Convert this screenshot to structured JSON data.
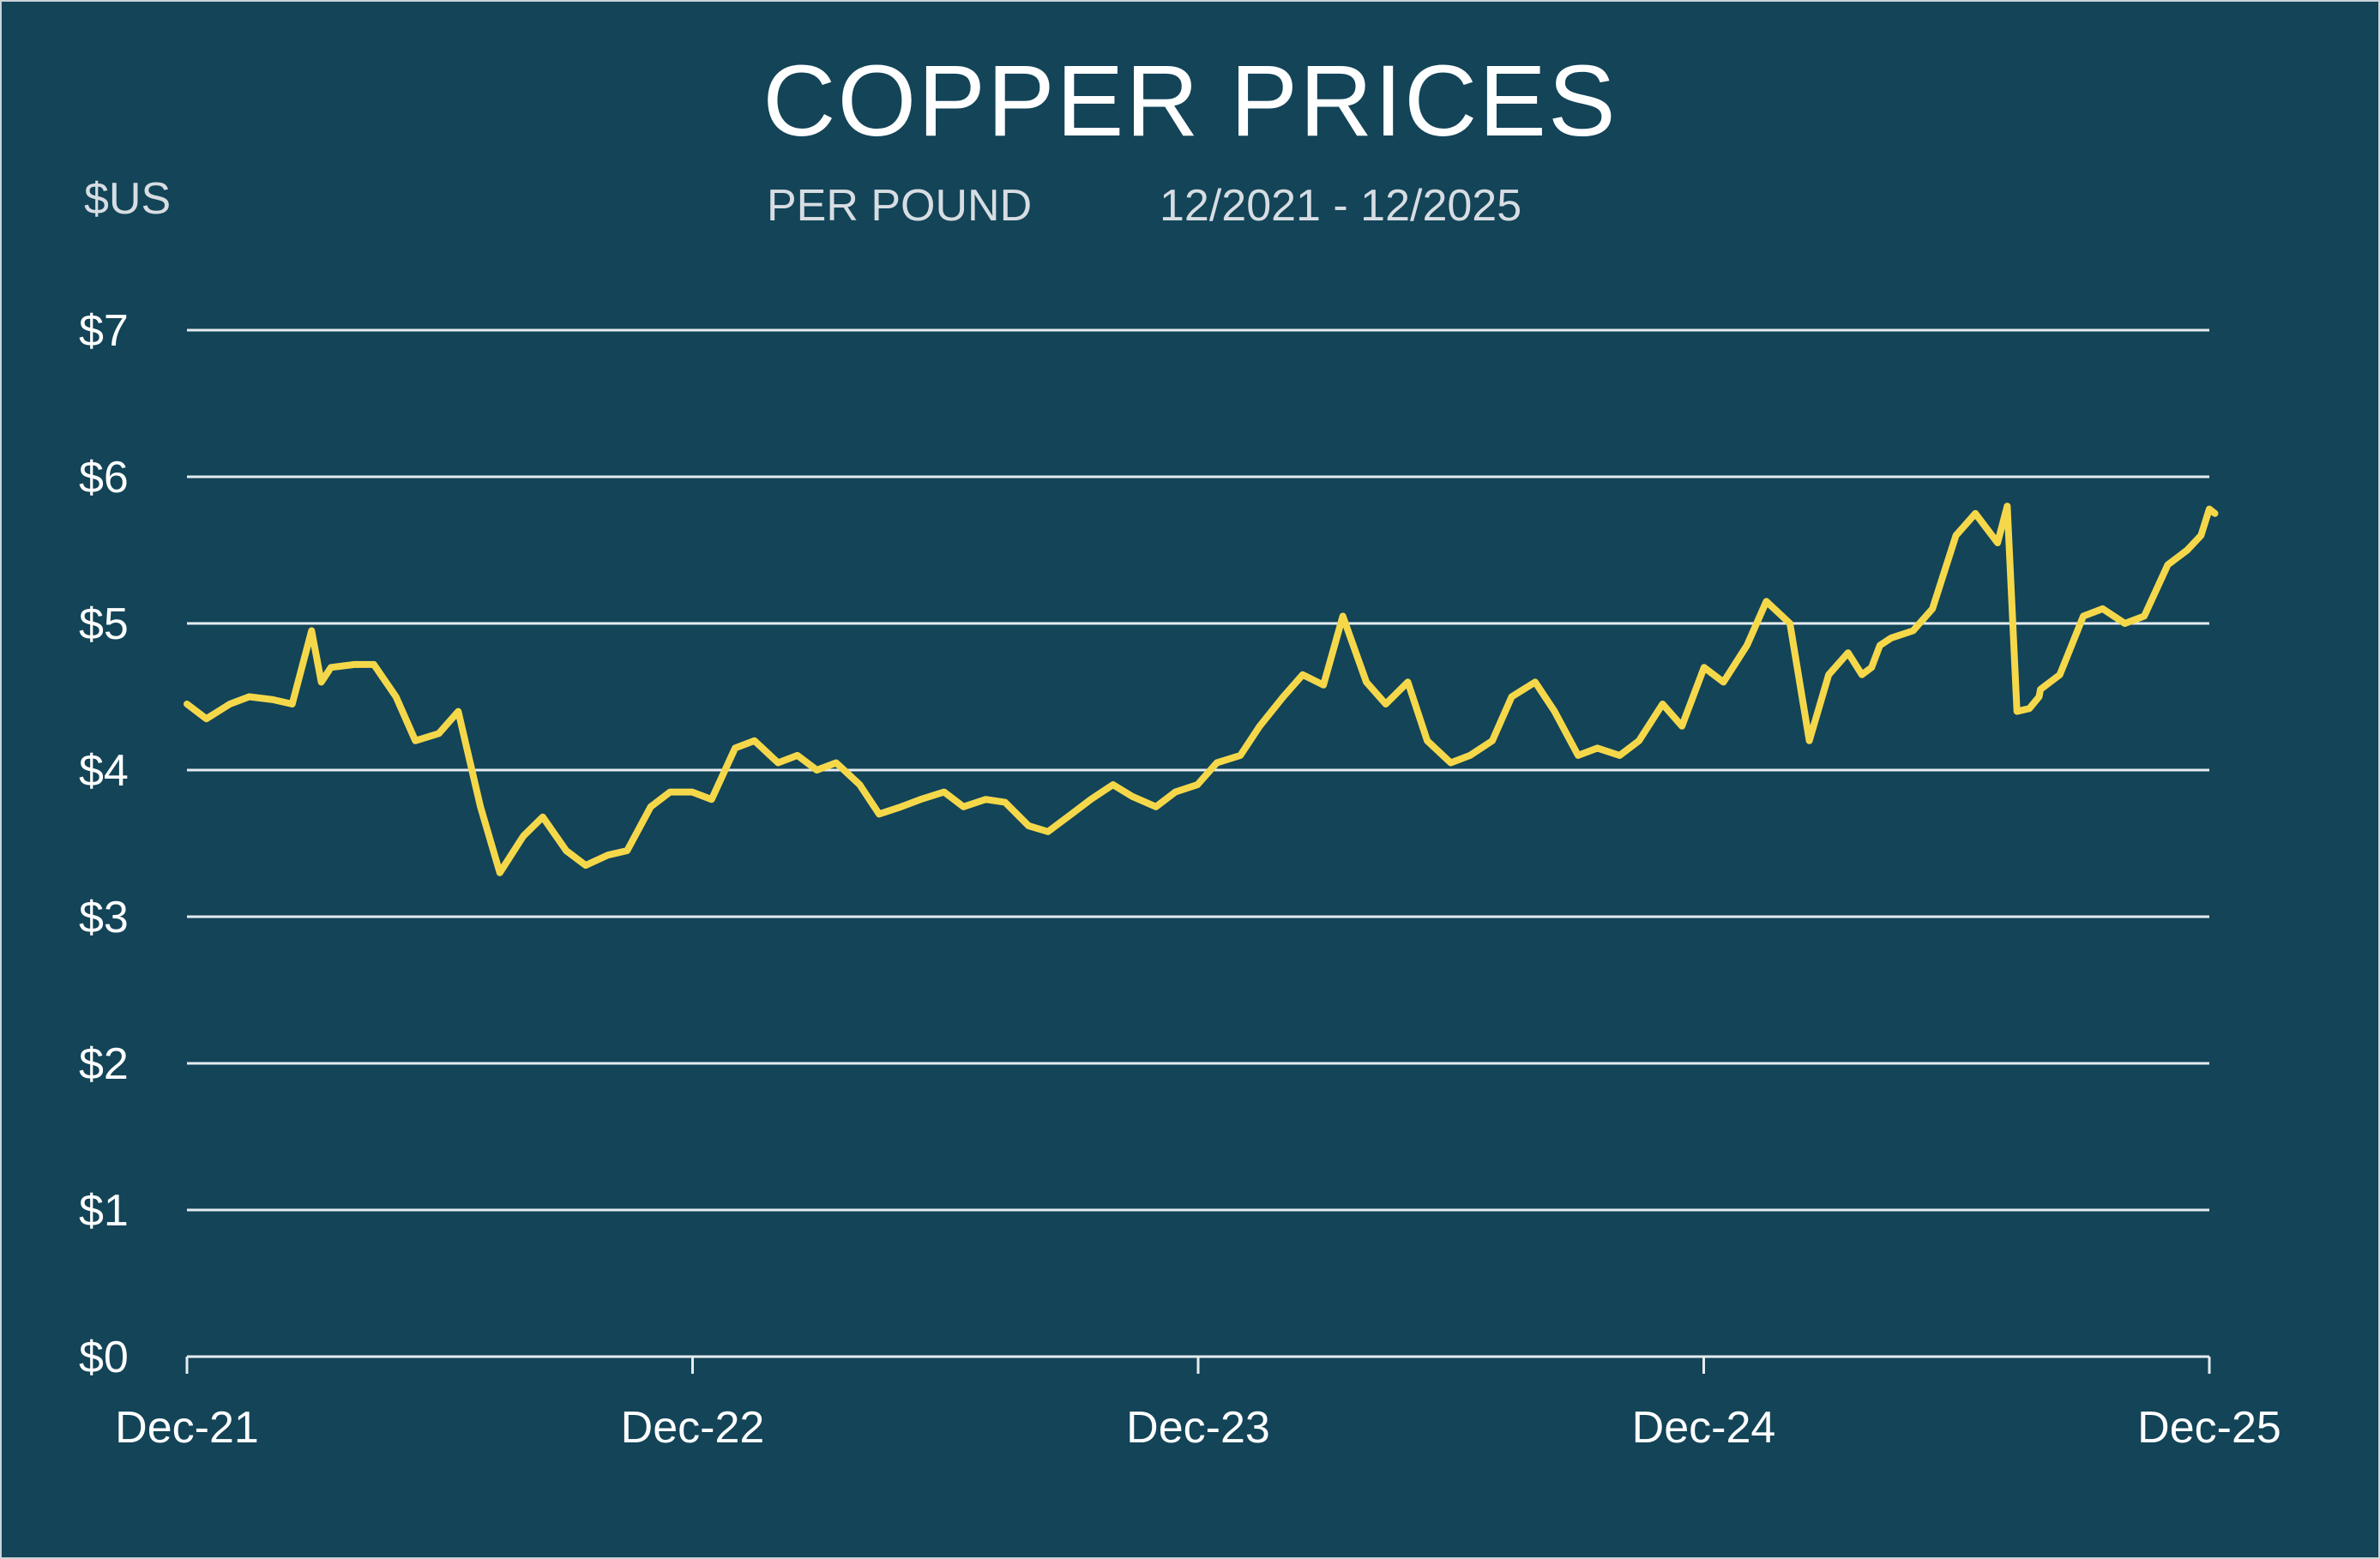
{
  "header": {
    "title": "COPPER PRICES",
    "unit_label": "$US",
    "subtitle": "PER POUND",
    "date_range": "12/2021 - 12/2025"
  },
  "colors": {
    "background": "#134458",
    "line": "#f5d84a",
    "grid": "#e6ecef",
    "text": "#ffffff"
  },
  "chart_data": {
    "type": "line",
    "title": "COPPER PRICES",
    "subtitle": "PER POUND",
    "ylabel": "$US",
    "ylim": [
      0,
      7
    ],
    "grid": true,
    "y_ticks": [
      0,
      1,
      2,
      3,
      4,
      5,
      6,
      7
    ],
    "y_tick_labels": [
      "$0",
      "$1",
      "$2",
      "$3",
      "$4",
      "$5",
      "$6",
      "$7"
    ],
    "x_tick_labels": [
      "Dec-21",
      "Dec-22",
      "Dec-23",
      "Dec-24",
      "Dec-25"
    ],
    "x_range": [
      "2021-12",
      "2025-12"
    ],
    "series": [
      {
        "x": [
          "2021-12-01",
          "2021-12-15",
          "2022-01-01",
          "2022-01-15",
          "2022-02-01",
          "2022-02-15",
          "2022-03-01",
          "2022-03-08",
          "2022-03-15",
          "2022-04-01",
          "2022-04-15",
          "2022-05-01",
          "2022-05-15",
          "2022-06-01",
          "2022-06-15",
          "2022-07-01",
          "2022-07-15",
          "2022-08-01",
          "2022-08-15",
          "2022-09-01",
          "2022-09-15",
          "2022-10-01",
          "2022-10-15",
          "2022-11-01",
          "2022-11-15",
          "2022-12-01",
          "2022-12-15",
          "2023-01-01",
          "2023-01-15",
          "2023-02-01",
          "2023-02-15",
          "2023-03-01",
          "2023-03-15",
          "2023-04-01",
          "2023-04-15",
          "2023-05-01",
          "2023-05-15",
          "2023-06-01",
          "2023-06-15",
          "2023-07-01",
          "2023-07-15",
          "2023-08-01",
          "2023-08-15",
          "2023-09-01",
          "2023-09-15",
          "2023-10-01",
          "2023-10-15",
          "2023-11-01",
          "2023-11-15",
          "2023-12-01",
          "2023-12-15",
          "2024-01-01",
          "2024-01-15",
          "2024-02-01",
          "2024-02-15",
          "2024-03-01",
          "2024-03-15",
          "2024-04-01",
          "2024-04-15",
          "2024-05-01",
          "2024-05-15",
          "2024-06-01",
          "2024-06-15",
          "2024-07-01",
          "2024-07-15",
          "2024-08-01",
          "2024-08-15",
          "2024-09-01",
          "2024-09-15",
          "2024-10-01",
          "2024-10-15",
          "2024-11-01",
          "2024-11-15",
          "2024-12-01",
          "2024-12-15",
          "2025-01-01",
          "2025-01-15",
          "2025-02-01",
          "2025-02-15",
          "2025-03-01",
          "2025-03-15",
          "2025-03-25",
          "2025-04-01",
          "2025-04-07",
          "2025-04-15",
          "2025-05-01",
          "2025-05-15",
          "2025-06-01",
          "2025-06-15",
          "2025-07-01",
          "2025-07-08",
          "2025-07-15",
          "2025-07-24",
          "2025-07-31",
          "2025-08-01",
          "2025-08-15",
          "2025-09-01",
          "2025-09-15",
          "2025-10-01",
          "2025-10-15",
          "2025-11-01",
          "2025-11-15",
          "2025-11-25",
          "2025-12-01",
          "2025-12-05"
        ],
        "y": [
          4.45,
          4.35,
          4.45,
          4.5,
          4.48,
          4.45,
          4.95,
          4.6,
          4.7,
          4.72,
          4.72,
          4.5,
          4.2,
          4.25,
          4.4,
          3.75,
          3.3,
          3.55,
          3.68,
          3.45,
          3.35,
          3.42,
          3.45,
          3.75,
          3.85,
          3.85,
          3.8,
          4.15,
          4.2,
          4.05,
          4.1,
          4.0,
          4.05,
          3.9,
          3.7,
          3.75,
          3.8,
          3.85,
          3.75,
          3.8,
          3.78,
          3.62,
          3.58,
          3.7,
          3.8,
          3.9,
          3.82,
          3.75,
          3.85,
          3.9,
          4.05,
          4.1,
          4.3,
          4.5,
          4.65,
          4.58,
          5.05,
          4.6,
          4.45,
          4.6,
          4.2,
          4.05,
          4.1,
          4.2,
          4.5,
          4.6,
          4.4,
          4.1,
          4.15,
          4.1,
          4.2,
          4.45,
          4.3,
          4.7,
          4.6,
          4.85,
          5.15,
          5.0,
          4.2,
          4.65,
          4.8,
          4.65,
          4.7,
          4.85,
          4.9,
          4.95,
          5.1,
          5.6,
          5.75,
          5.55,
          5.8,
          4.4,
          4.42,
          4.5,
          4.55,
          4.65,
          5.05,
          5.1,
          5.0,
          5.05,
          5.4,
          5.5,
          5.6,
          5.78,
          5.75
        ]
      }
    ]
  }
}
